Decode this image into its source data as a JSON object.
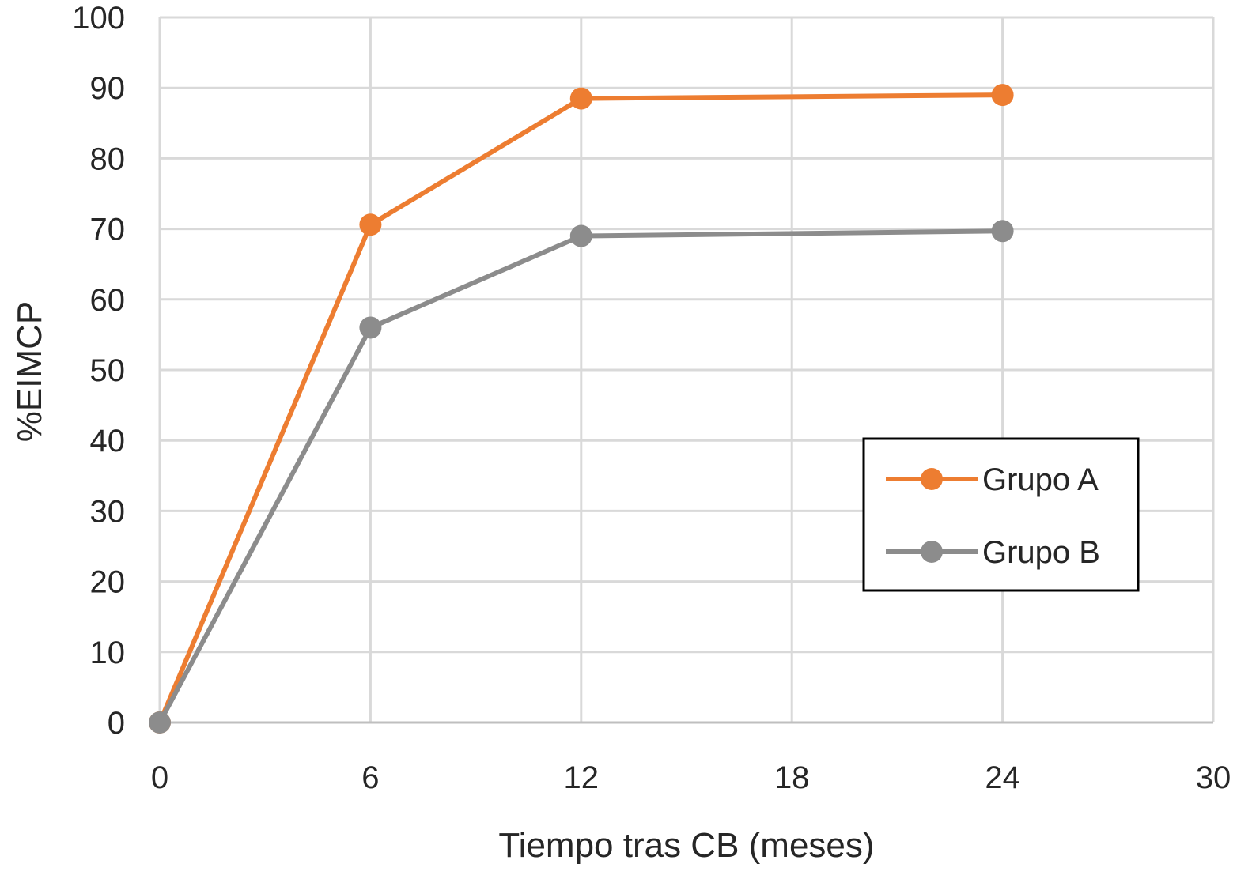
{
  "chart_data": {
    "type": "line",
    "title": "",
    "xlabel": "Tiempo tras CB (meses)",
    "ylabel": "%EIMCP",
    "xlim": [
      0,
      30
    ],
    "ylim": [
      0,
      100
    ],
    "x_ticks": [
      0,
      6,
      12,
      18,
      24,
      30
    ],
    "y_ticks": [
      0,
      10,
      20,
      30,
      40,
      50,
      60,
      70,
      80,
      90,
      100
    ],
    "grid": true,
    "legend_position": "right",
    "series": [
      {
        "name": "Grupo A",
        "color": "#ED7D31",
        "marker": "circle",
        "x": [
          0,
          6,
          12,
          24
        ],
        "y": [
          0,
          70.6,
          88.5,
          89.0
        ]
      },
      {
        "name": "Grupo B",
        "color": "#8C8C8C",
        "marker": "circle",
        "x": [
          0,
          6,
          12,
          24
        ],
        "y": [
          0,
          56.0,
          69.0,
          69.7
        ]
      }
    ]
  }
}
